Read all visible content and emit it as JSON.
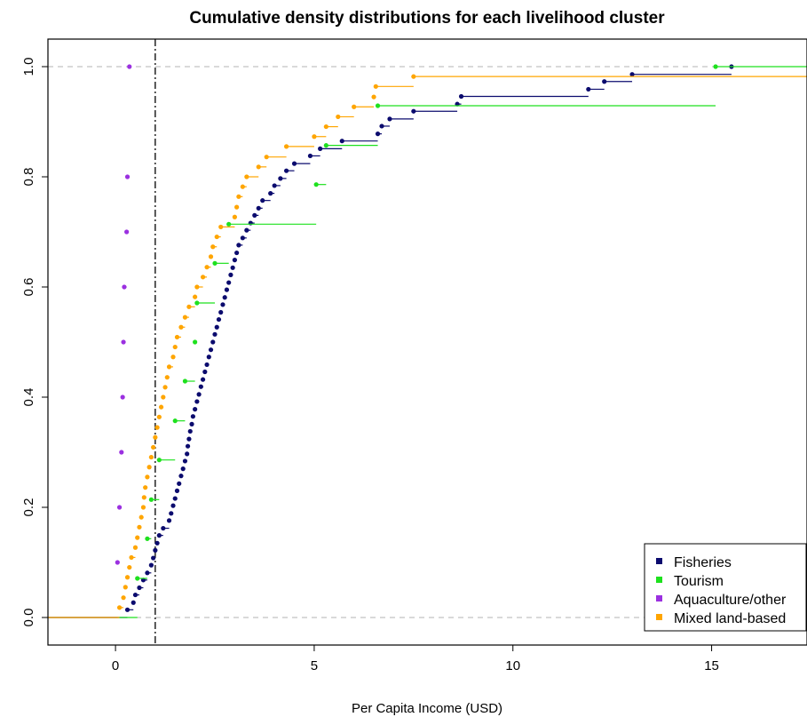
{
  "chart_data": {
    "type": "line",
    "title": "Cumulative density distributions for each livelihood cluster",
    "xlabel": "Per Capita Income (USD)",
    "ylabel": "",
    "xlim": [
      -1.7,
      17.4
    ],
    "ylim": [
      -0.05,
      1.05
    ],
    "x_ticks": [
      0,
      5,
      10,
      15
    ],
    "y_ticks": [
      0.0,
      0.2,
      0.4,
      0.6,
      0.8,
      1.0
    ],
    "x_tick_labels": [
      "0",
      "5",
      "10",
      "15"
    ],
    "y_tick_labels": [
      "0.0",
      "0.2",
      "0.4",
      "0.6",
      "0.8",
      "1.0"
    ],
    "reference_lines": [
      {
        "orientation": "horizontal",
        "value": 0.0,
        "style": "dashed",
        "color": "#b3b3b3"
      },
      {
        "orientation": "horizontal",
        "value": 1.0,
        "style": "dashed",
        "color": "#b3b3b3"
      },
      {
        "orientation": "vertical",
        "value": 1.0,
        "style": "dashdot",
        "color": "#000000"
      }
    ],
    "legend": {
      "position": "bottom-right",
      "entries": [
        {
          "label": "Fisheries",
          "color": "#0b0b6e"
        },
        {
          "label": "Tourism",
          "color": "#1ee11e"
        },
        {
          "label": "Aquaculture/other",
          "color": "#9b30e0"
        },
        {
          "label": "Mixed land-based",
          "color": "#ffa500"
        }
      ]
    },
    "series": [
      {
        "name": "Fisheries",
        "color": "#0b0b6e",
        "step_points": [
          [
            0.3,
            0.014
          ],
          [
            0.45,
            0.027
          ],
          [
            0.5,
            0.041
          ],
          [
            0.6,
            0.054
          ],
          [
            0.7,
            0.068
          ],
          [
            0.8,
            0.081
          ],
          [
            0.9,
            0.095
          ],
          [
            0.95,
            0.108
          ],
          [
            1.0,
            0.122
          ],
          [
            1.05,
            0.135
          ],
          [
            1.1,
            0.149
          ],
          [
            1.2,
            0.162
          ],
          [
            1.35,
            0.176
          ],
          [
            1.4,
            0.189
          ],
          [
            1.45,
            0.203
          ],
          [
            1.5,
            0.216
          ],
          [
            1.55,
            0.23
          ],
          [
            1.6,
            0.243
          ],
          [
            1.65,
            0.257
          ],
          [
            1.7,
            0.27
          ],
          [
            1.75,
            0.284
          ],
          [
            1.8,
            0.297
          ],
          [
            1.82,
            0.311
          ],
          [
            1.85,
            0.324
          ],
          [
            1.88,
            0.338
          ],
          [
            1.92,
            0.351
          ],
          [
            1.95,
            0.365
          ],
          [
            2.0,
            0.378
          ],
          [
            2.05,
            0.392
          ],
          [
            2.1,
            0.405
          ],
          [
            2.15,
            0.419
          ],
          [
            2.2,
            0.432
          ],
          [
            2.25,
            0.446
          ],
          [
            2.3,
            0.459
          ],
          [
            2.35,
            0.473
          ],
          [
            2.4,
            0.486
          ],
          [
            2.45,
            0.5
          ],
          [
            2.5,
            0.514
          ],
          [
            2.55,
            0.527
          ],
          [
            2.6,
            0.541
          ],
          [
            2.65,
            0.554
          ],
          [
            2.7,
            0.568
          ],
          [
            2.75,
            0.581
          ],
          [
            2.8,
            0.595
          ],
          [
            2.85,
            0.608
          ],
          [
            2.9,
            0.622
          ],
          [
            2.95,
            0.635
          ],
          [
            3.0,
            0.649
          ],
          [
            3.05,
            0.662
          ],
          [
            3.1,
            0.676
          ],
          [
            3.2,
            0.689
          ],
          [
            3.3,
            0.703
          ],
          [
            3.4,
            0.716
          ],
          [
            3.5,
            0.73
          ],
          [
            3.6,
            0.743
          ],
          [
            3.7,
            0.757
          ],
          [
            3.9,
            0.77
          ],
          [
            4.0,
            0.784
          ],
          [
            4.15,
            0.797
          ],
          [
            4.3,
            0.811
          ],
          [
            4.5,
            0.824
          ],
          [
            4.9,
            0.838
          ],
          [
            5.15,
            0.851
          ],
          [
            5.7,
            0.865
          ],
          [
            6.6,
            0.878
          ],
          [
            6.7,
            0.892
          ],
          [
            6.9,
            0.905
          ],
          [
            7.5,
            0.919
          ],
          [
            8.6,
            0.932
          ],
          [
            8.7,
            0.946
          ],
          [
            11.9,
            0.959
          ],
          [
            12.3,
            0.973
          ],
          [
            13.0,
            0.986
          ],
          [
            15.5,
            1.0
          ]
        ],
        "end_x": 15.5,
        "start_x": -1.7
      },
      {
        "name": "Tourism",
        "color": "#1ee11e",
        "step_points": [
          [
            0.55,
            0.071
          ],
          [
            0.8,
            0.143
          ],
          [
            0.9,
            0.214
          ],
          [
            1.1,
            0.286
          ],
          [
            1.5,
            0.357
          ],
          [
            1.75,
            0.429
          ],
          [
            2.0,
            0.5
          ],
          [
            2.05,
            0.571
          ],
          [
            2.5,
            0.643
          ],
          [
            2.85,
            0.714
          ],
          [
            5.05,
            0.786
          ],
          [
            5.3,
            0.857
          ],
          [
            6.6,
            0.929
          ],
          [
            15.1,
            1.0
          ]
        ],
        "end_x": 17.4,
        "start_x": -1.7
      },
      {
        "name": "Aquaculture/other",
        "color": "#9b30e0",
        "step_points": [
          [
            0.05,
            0.1
          ],
          [
            0.1,
            0.2
          ],
          [
            0.15,
            0.3
          ],
          [
            0.18,
            0.4
          ],
          [
            0.2,
            0.5
          ],
          [
            0.22,
            0.6
          ],
          [
            0.28,
            0.7
          ],
          [
            0.3,
            0.8
          ],
          [
            0.35,
            1.0
          ]
        ],
        "end_x": 0.35,
        "start_x": -1.7
      },
      {
        "name": "Mixed land-based",
        "color": "#ffa500",
        "step_points": [
          [
            0.1,
            0.018
          ],
          [
            0.2,
            0.036
          ],
          [
            0.25,
            0.055
          ],
          [
            0.3,
            0.073
          ],
          [
            0.35,
            0.091
          ],
          [
            0.4,
            0.109
          ],
          [
            0.5,
            0.127
          ],
          [
            0.55,
            0.145
          ],
          [
            0.6,
            0.164
          ],
          [
            0.65,
            0.182
          ],
          [
            0.7,
            0.2
          ],
          [
            0.72,
            0.218
          ],
          [
            0.75,
            0.236
          ],
          [
            0.8,
            0.255
          ],
          [
            0.85,
            0.273
          ],
          [
            0.9,
            0.291
          ],
          [
            0.95,
            0.309
          ],
          [
            1.0,
            0.327
          ],
          [
            1.05,
            0.345
          ],
          [
            1.1,
            0.364
          ],
          [
            1.15,
            0.382
          ],
          [
            1.2,
            0.4
          ],
          [
            1.25,
            0.418
          ],
          [
            1.3,
            0.436
          ],
          [
            1.35,
            0.455
          ],
          [
            1.45,
            0.473
          ],
          [
            1.5,
            0.491
          ],
          [
            1.55,
            0.509
          ],
          [
            1.65,
            0.527
          ],
          [
            1.75,
            0.545
          ],
          [
            1.85,
            0.564
          ],
          [
            2.0,
            0.582
          ],
          [
            2.05,
            0.6
          ],
          [
            2.2,
            0.618
          ],
          [
            2.3,
            0.636
          ],
          [
            2.4,
            0.655
          ],
          [
            2.45,
            0.673
          ],
          [
            2.55,
            0.691
          ],
          [
            2.65,
            0.709
          ],
          [
            3.0,
            0.727
          ],
          [
            3.05,
            0.745
          ],
          [
            3.1,
            0.764
          ],
          [
            3.2,
            0.782
          ],
          [
            3.3,
            0.8
          ],
          [
            3.6,
            0.818
          ],
          [
            3.8,
            0.836
          ],
          [
            4.3,
            0.855
          ],
          [
            5.0,
            0.873
          ],
          [
            5.3,
            0.891
          ],
          [
            5.6,
            0.909
          ],
          [
            6.0,
            0.927
          ],
          [
            6.5,
            0.945
          ],
          [
            6.55,
            0.964
          ],
          [
            7.5,
            0.982
          ]
        ],
        "end_x": 17.4,
        "start_x": -1.7
      }
    ]
  }
}
